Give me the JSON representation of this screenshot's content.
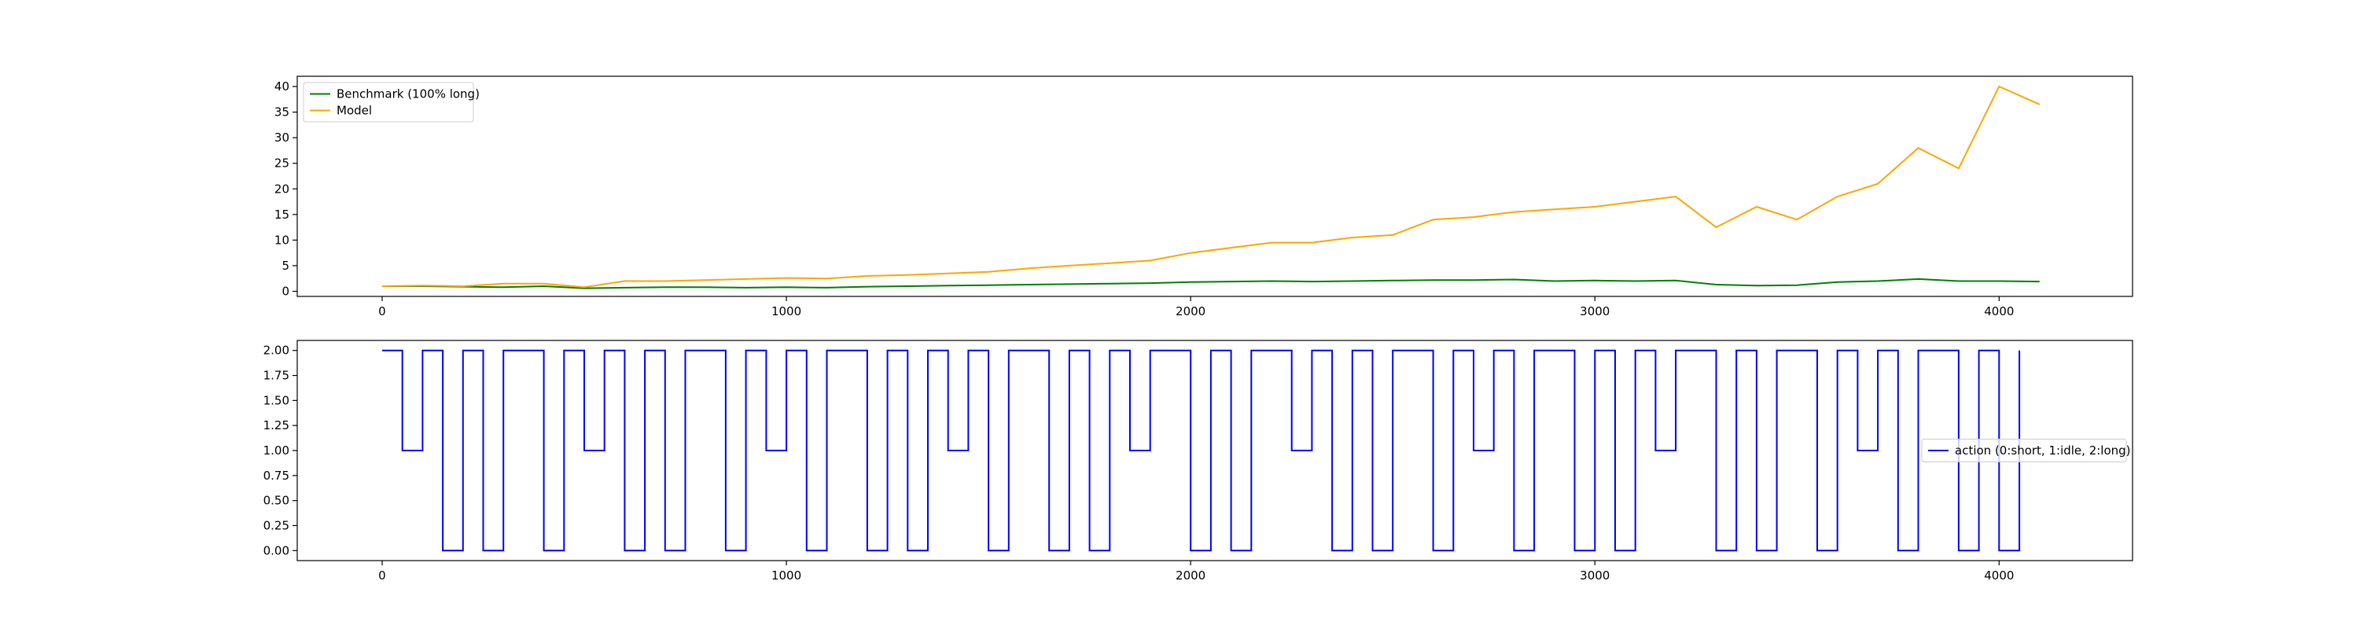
{
  "chart_data": [
    {
      "type": "line",
      "title": "",
      "xlabel": "",
      "ylabel": "",
      "xlim": [
        -210,
        4330
      ],
      "ylim": [
        -1.0,
        42.0
      ],
      "x_ticks": [
        0,
        1000,
        2000,
        3000,
        4000
      ],
      "x_tick_labels": [
        "0",
        "1000",
        "2000",
        "3000",
        "4000"
      ],
      "y_ticks": [
        0,
        5,
        10,
        15,
        20,
        25,
        30,
        35,
        40
      ],
      "y_tick_labels": [
        "0",
        "5",
        "10",
        "15",
        "20",
        "25",
        "30",
        "35",
        "40"
      ],
      "grid": false,
      "legend": {
        "position": "upper-left",
        "entries": [
          "Benchmark (100% long)",
          "Model"
        ]
      },
      "series": [
        {
          "name": "Benchmark (100% long)",
          "color": "#008000",
          "x": [
            0,
            100,
            200,
            300,
            400,
            500,
            600,
            700,
            800,
            900,
            1000,
            1100,
            1200,
            1300,
            1400,
            1500,
            1600,
            1700,
            1800,
            1900,
            2000,
            2100,
            2200,
            2300,
            2400,
            2500,
            2600,
            2700,
            2800,
            2900,
            3000,
            3100,
            3200,
            3300,
            3400,
            3500,
            3600,
            3700,
            3800,
            3900,
            4000,
            4100
          ],
          "y": [
            1.0,
            1.0,
            0.9,
            0.8,
            1.0,
            0.6,
            0.7,
            0.8,
            0.8,
            0.7,
            0.8,
            0.7,
            0.9,
            1.0,
            1.1,
            1.2,
            1.3,
            1.4,
            1.5,
            1.6,
            1.8,
            1.9,
            2.0,
            1.9,
            2.0,
            2.1,
            2.2,
            2.2,
            2.3,
            2.0,
            2.1,
            2.0,
            2.1,
            1.3,
            1.1,
            1.2,
            1.8,
            2.0,
            2.4,
            2.0,
            2.0,
            1.9
          ]
        },
        {
          "name": "Model",
          "color": "#ffa500",
          "x": [
            0,
            100,
            200,
            300,
            400,
            500,
            600,
            700,
            800,
            900,
            1000,
            1100,
            1200,
            1300,
            1400,
            1500,
            1600,
            1700,
            1800,
            1900,
            2000,
            2100,
            2200,
            2300,
            2400,
            2500,
            2600,
            2700,
            2800,
            2900,
            3000,
            3100,
            3200,
            3300,
            3400,
            3500,
            3600,
            3700,
            3800,
            3900,
            4000,
            4100
          ],
          "y": [
            1.0,
            1.1,
            1.0,
            1.5,
            1.5,
            0.8,
            2.0,
            2.0,
            2.2,
            2.4,
            2.6,
            2.5,
            3.0,
            3.2,
            3.5,
            3.8,
            4.5,
            5.0,
            5.5,
            6.0,
            7.5,
            8.5,
            9.5,
            9.5,
            10.5,
            11.0,
            14.0,
            14.5,
            15.5,
            16.0,
            16.5,
            17.5,
            18.5,
            12.5,
            16.5,
            14.0,
            18.5,
            21.0,
            28.0,
            24.0,
            40.0,
            36.5
          ]
        }
      ]
    },
    {
      "type": "line",
      "title": "",
      "xlabel": "",
      "ylabel": "",
      "xlim": [
        -210,
        4330
      ],
      "ylim": [
        -0.1,
        2.1
      ],
      "x_ticks": [
        0,
        1000,
        2000,
        3000,
        4000
      ],
      "x_tick_labels": [
        "0",
        "1000",
        "2000",
        "3000",
        "4000"
      ],
      "y_ticks": [
        0,
        0.25,
        0.5,
        0.75,
        1.0,
        1.25,
        1.5,
        1.75,
        2.0
      ],
      "y_tick_labels": [
        "0.00",
        "0.25",
        "0.50",
        "0.75",
        "1.00",
        "1.25",
        "1.50",
        "1.75",
        "2.00"
      ],
      "grid": false,
      "legend": {
        "position": "center-right",
        "entries": [
          "action (0:short, 1:idle, 2:long)"
        ]
      },
      "series": [
        {
          "name": "action (0:short, 1:idle, 2:long)",
          "color": "#0000ff",
          "x": [
            0,
            1,
            2,
            3,
            4,
            5,
            6,
            7,
            8,
            9,
            10,
            11,
            12,
            13,
            14,
            15,
            16,
            17,
            18,
            19,
            20,
            21,
            22,
            23,
            24,
            25,
            26,
            27,
            28,
            29,
            30,
            31,
            32,
            33,
            34,
            35,
            36,
            37,
            38,
            39,
            40,
            41,
            42,
            43,
            44,
            45,
            46,
            47,
            48,
            49,
            50,
            51,
            52,
            53,
            54,
            55,
            56,
            57,
            58,
            59,
            60,
            61,
            62,
            63,
            64,
            65,
            66,
            67,
            68,
            69,
            70,
            71,
            72,
            73,
            74,
            75,
            76,
            77,
            78,
            79,
            80,
            81
          ],
          "x_scale": 50,
          "y": [
            2,
            1,
            2,
            0,
            2,
            0,
            2,
            2,
            0,
            2,
            1,
            2,
            0,
            2,
            0,
            2,
            2,
            0,
            2,
            1,
            2,
            0,
            2,
            2,
            0,
            2,
            0,
            2,
            1,
            2,
            0,
            2,
            2,
            0,
            2,
            0,
            2,
            1,
            2,
            2,
            0,
            2,
            0,
            2,
            2,
            1,
            2,
            0,
            2,
            0,
            2,
            2,
            0,
            2,
            1,
            2,
            0,
            2,
            2,
            0,
            2,
            0,
            2,
            1,
            2,
            2,
            0,
            2,
            0,
            2,
            2,
            0,
            2,
            1,
            2,
            0,
            2,
            2,
            0,
            2,
            0,
            2
          ]
        }
      ]
    }
  ]
}
